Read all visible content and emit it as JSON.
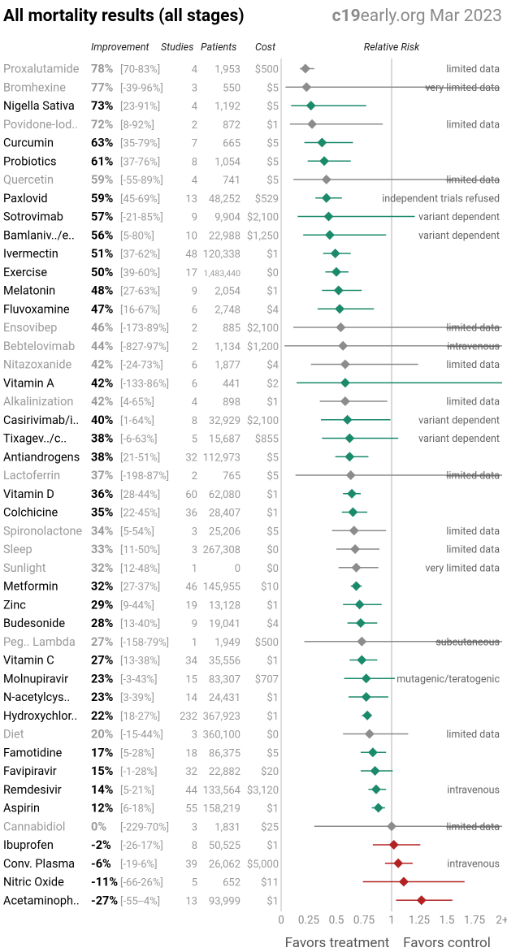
{
  "title": "All mortality results (all stages)",
  "brand_bold": "c19",
  "brand_rest": "early.org Mar 2023",
  "headers": {
    "improvement": "Improvement",
    "studies": "Studies",
    "patients": "Patients",
    "cost": "Cost",
    "relative_risk": "Relative Risk"
  },
  "footer": {
    "favors_treatment": "Favors treatment",
    "favors_control": "Favors control"
  },
  "colors": {
    "green": "#1b8a6b",
    "gray": "#8c8c8c",
    "red": "#b22222",
    "text_dark": "#000000",
    "text_muted": "#9a9a9a"
  },
  "chart_data": {
    "type": "forest",
    "x_axis": {
      "ticks": [
        0,
        0.25,
        0.5,
        0.75,
        1,
        1.25,
        1.5,
        1.75,
        2
      ],
      "tick_labels": [
        "0",
        "0.25",
        "0.5",
        "0.75",
        "1",
        "1.25",
        "1.5",
        "1.75",
        "2+"
      ],
      "range": [
        0,
        2
      ],
      "reference_line": 1
    },
    "rows": [
      {
        "name": "Proxalutamide",
        "improvement": "78%",
        "ci": "[70-83%]",
        "studies": "4",
        "patients": "1,953",
        "cost": "$500",
        "rr": 0.22,
        "lo": 0.17,
        "hi": 0.3,
        "color": "gray",
        "muted": true,
        "note": "limited data",
        "strike": false
      },
      {
        "name": "Bromhexine",
        "improvement": "77%",
        "ci": "[-39-96%]",
        "studies": "3",
        "patients": "550",
        "cost": "$5",
        "rr": 0.23,
        "lo": 0.04,
        "hi": 1.39,
        "color": "gray",
        "muted": true,
        "note": "very limited data",
        "strike": true
      },
      {
        "name": "Nigella Sativa",
        "improvement": "73%",
        "ci": "[23-91%]",
        "studies": "4",
        "patients": "1,192",
        "cost": "$5",
        "rr": 0.27,
        "lo": 0.09,
        "hi": 0.77,
        "color": "green",
        "muted": false,
        "note": "",
        "strike": false
      },
      {
        "name": "Povidone-Iod..",
        "improvement": "72%",
        "ci": "[8-92%]",
        "studies": "2",
        "patients": "872",
        "cost": "$1",
        "rr": 0.28,
        "lo": 0.08,
        "hi": 0.92,
        "color": "gray",
        "muted": true,
        "note": "limited data",
        "strike": false
      },
      {
        "name": "Curcumin",
        "improvement": "63%",
        "ci": "[35-79%]",
        "studies": "7",
        "patients": "665",
        "cost": "$5",
        "rr": 0.37,
        "lo": 0.21,
        "hi": 0.65,
        "color": "green",
        "muted": false,
        "note": "",
        "strike": false
      },
      {
        "name": "Probiotics",
        "improvement": "61%",
        "ci": "[37-76%]",
        "studies": "8",
        "patients": "1,054",
        "cost": "$5",
        "rr": 0.39,
        "lo": 0.24,
        "hi": 0.63,
        "color": "green",
        "muted": false,
        "note": "",
        "strike": false
      },
      {
        "name": "Quercetin",
        "improvement": "59%",
        "ci": "[-55-89%]",
        "studies": "4",
        "patients": "741",
        "cost": "$5",
        "rr": 0.41,
        "lo": 0.11,
        "hi": 1.55,
        "color": "gray",
        "muted": true,
        "note": "limited data",
        "strike": true
      },
      {
        "name": "Paxlovid",
        "improvement": "59%",
        "ci": "[45-69%]",
        "studies": "13",
        "patients": "48,252",
        "cost": "$529",
        "rr": 0.41,
        "lo": 0.31,
        "hi": 0.55,
        "color": "green",
        "muted": false,
        "note": "independent trials refused",
        "strike": false
      },
      {
        "name": "Sotrovimab",
        "improvement": "57%",
        "ci": "[-21-85%]",
        "studies": "9",
        "patients": "9,904",
        "cost": "$2,100",
        "rr": 0.43,
        "lo": 0.15,
        "hi": 1.21,
        "color": "green",
        "muted": false,
        "note": "variant dependent",
        "strike": false
      },
      {
        "name": "Bamlaniv../e..",
        "improvement": "56%",
        "ci": "[5-80%]",
        "studies": "10",
        "patients": "22,988",
        "cost": "$1,250",
        "rr": 0.44,
        "lo": 0.2,
        "hi": 0.95,
        "color": "green",
        "muted": false,
        "note": "variant dependent",
        "strike": false
      },
      {
        "name": "Ivermectin",
        "improvement": "51%",
        "ci": "[37-62%]",
        "studies": "48",
        "patients": "120,338",
        "cost": "$1",
        "rr": 0.49,
        "lo": 0.38,
        "hi": 0.63,
        "color": "green",
        "muted": false,
        "note": "",
        "strike": false
      },
      {
        "name": "Exercise",
        "improvement": "50%",
        "ci": "[39-60%]",
        "studies": "17",
        "patients": "1,483,440",
        "cost": "$0",
        "rr": 0.5,
        "lo": 0.4,
        "hi": 0.61,
        "color": "green",
        "muted": false,
        "note": "",
        "strike": false
      },
      {
        "name": "Melatonin",
        "improvement": "48%",
        "ci": "[27-63%]",
        "studies": "9",
        "patients": "2,054",
        "cost": "$1",
        "rr": 0.52,
        "lo": 0.37,
        "hi": 0.73,
        "color": "green",
        "muted": false,
        "note": "",
        "strike": false
      },
      {
        "name": "Fluvoxamine",
        "improvement": "47%",
        "ci": "[16-67%]",
        "studies": "6",
        "patients": "2,748",
        "cost": "$4",
        "rr": 0.53,
        "lo": 0.33,
        "hi": 0.84,
        "color": "green",
        "muted": false,
        "note": "",
        "strike": false
      },
      {
        "name": "Ensovibep",
        "improvement": "46%",
        "ci": "[-173-89%]",
        "studies": "2",
        "patients": "885",
        "cost": "$2,100",
        "rr": 0.54,
        "lo": 0.11,
        "hi": 2.73,
        "color": "gray",
        "muted": true,
        "note": "limited data",
        "strike": true
      },
      {
        "name": "Bebtelovimab",
        "improvement": "44%",
        "ci": "[-827-97%]",
        "studies": "2",
        "patients": "1,134",
        "cost": "$1,200",
        "rr": 0.56,
        "lo": 0.03,
        "hi": 9.27,
        "color": "gray",
        "muted": true,
        "note": "intravenous",
        "strike": true
      },
      {
        "name": "Nitazoxanide",
        "improvement": "42%",
        "ci": "[-24-73%]",
        "studies": "6",
        "patients": "1,877",
        "cost": "$4",
        "rr": 0.58,
        "lo": 0.27,
        "hi": 1.24,
        "color": "gray",
        "muted": true,
        "note": "limited data",
        "strike": false
      },
      {
        "name": "Vitamin A",
        "improvement": "42%",
        "ci": "[-133-86%]",
        "studies": "6",
        "patients": "441",
        "cost": "$2",
        "rr": 0.58,
        "lo": 0.14,
        "hi": 2.33,
        "color": "green",
        "muted": false,
        "note": "",
        "strike": false
      },
      {
        "name": "Alkalinization",
        "improvement": "42%",
        "ci": "[4-65%]",
        "studies": "4",
        "patients": "898",
        "cost": "$1",
        "rr": 0.58,
        "lo": 0.35,
        "hi": 0.96,
        "color": "gray",
        "muted": true,
        "note": "limited data",
        "strike": false
      },
      {
        "name": "Casirivimab/i..",
        "improvement": "40%",
        "ci": "[1-64%]",
        "studies": "8",
        "patients": "32,929",
        "cost": "$2,100",
        "rr": 0.6,
        "lo": 0.36,
        "hi": 0.99,
        "color": "green",
        "muted": false,
        "note": "variant dependent",
        "strike": false
      },
      {
        "name": "Tixagev../c..",
        "improvement": "38%",
        "ci": "[-6-63%]",
        "studies": "5",
        "patients": "15,687",
        "cost": "$855",
        "rr": 0.62,
        "lo": 0.37,
        "hi": 1.06,
        "color": "green",
        "muted": false,
        "note": "variant dependent",
        "strike": false
      },
      {
        "name": "Antiandrogens",
        "improvement": "38%",
        "ci": "[21-51%]",
        "studies": "32",
        "patients": "112,973",
        "cost": "$5",
        "rr": 0.62,
        "lo": 0.49,
        "hi": 0.79,
        "color": "green",
        "muted": false,
        "note": "",
        "strike": false
      },
      {
        "name": "Lactoferrin",
        "improvement": "37%",
        "ci": "[-198-87%]",
        "studies": "2",
        "patients": "765",
        "cost": "$5",
        "rr": 0.63,
        "lo": 0.13,
        "hi": 2.98,
        "color": "gray",
        "muted": true,
        "note": "limited data",
        "strike": true
      },
      {
        "name": "Vitamin D",
        "improvement": "36%",
        "ci": "[28-44%]",
        "studies": "60",
        "patients": "62,080",
        "cost": "$1",
        "rr": 0.64,
        "lo": 0.56,
        "hi": 0.72,
        "color": "green",
        "muted": false,
        "note": "",
        "strike": false
      },
      {
        "name": "Colchicine",
        "improvement": "35%",
        "ci": "[22-45%]",
        "studies": "36",
        "patients": "28,407",
        "cost": "$1",
        "rr": 0.65,
        "lo": 0.55,
        "hi": 0.78,
        "color": "green",
        "muted": false,
        "note": "",
        "strike": false
      },
      {
        "name": "Spironolactone",
        "improvement": "34%",
        "ci": "[5-54%]",
        "studies": "3",
        "patients": "25,206",
        "cost": "$5",
        "rr": 0.66,
        "lo": 0.46,
        "hi": 0.95,
        "color": "gray",
        "muted": true,
        "note": "limited data",
        "strike": false
      },
      {
        "name": "Sleep",
        "improvement": "33%",
        "ci": "[11-50%]",
        "studies": "3",
        "patients": "267,308",
        "cost": "$0",
        "rr": 0.67,
        "lo": 0.5,
        "hi": 0.89,
        "color": "gray",
        "muted": true,
        "note": "limited data",
        "strike": false
      },
      {
        "name": "Sunlight",
        "improvement": "32%",
        "ci": "[12-48%]",
        "studies": "1",
        "patients": "0",
        "cost": "$0",
        "rr": 0.68,
        "lo": 0.52,
        "hi": 0.88,
        "color": "gray",
        "muted": true,
        "note": "very limited data",
        "strike": false
      },
      {
        "name": "Metformin",
        "improvement": "32%",
        "ci": "[27-37%]",
        "studies": "46",
        "patients": "145,955",
        "cost": "$10",
        "rr": 0.68,
        "lo": 0.63,
        "hi": 0.73,
        "color": "green",
        "muted": false,
        "note": "",
        "strike": false
      },
      {
        "name": "Zinc",
        "improvement": "29%",
        "ci": "[9-44%]",
        "studies": "19",
        "patients": "13,128",
        "cost": "$1",
        "rr": 0.71,
        "lo": 0.56,
        "hi": 0.91,
        "color": "green",
        "muted": false,
        "note": "",
        "strike": false
      },
      {
        "name": "Budesonide",
        "improvement": "28%",
        "ci": "[13-40%]",
        "studies": "9",
        "patients": "19,041",
        "cost": "$4",
        "rr": 0.72,
        "lo": 0.6,
        "hi": 0.87,
        "color": "green",
        "muted": false,
        "note": "",
        "strike": false
      },
      {
        "name": "Peg.. Lambda",
        "improvement": "27%",
        "ci": "[-158-79%]",
        "studies": "1",
        "patients": "1,949",
        "cost": "$500",
        "rr": 0.73,
        "lo": 0.21,
        "hi": 2.58,
        "color": "gray",
        "muted": true,
        "note": "subcutaneous",
        "strike": true
      },
      {
        "name": "Vitamin C",
        "improvement": "27%",
        "ci": "[13-38%]",
        "studies": "34",
        "patients": "35,556",
        "cost": "$1",
        "rr": 0.73,
        "lo": 0.62,
        "hi": 0.87,
        "color": "green",
        "muted": false,
        "note": "",
        "strike": false
      },
      {
        "name": "Molnupiravir",
        "improvement": "23%",
        "ci": "[-3-43%]",
        "studies": "15",
        "patients": "83,307",
        "cost": "$707",
        "rr": 0.77,
        "lo": 0.57,
        "hi": 1.03,
        "color": "green",
        "muted": false,
        "note": "mutagenic/teratogenic",
        "strike": false
      },
      {
        "name": "N-acetylcys..",
        "improvement": "23%",
        "ci": "[3-39%]",
        "studies": "14",
        "patients": "24,431",
        "cost": "$1",
        "rr": 0.77,
        "lo": 0.61,
        "hi": 0.97,
        "color": "green",
        "muted": false,
        "note": "",
        "strike": false
      },
      {
        "name": "Hydroxychlor..",
        "improvement": "22%",
        "ci": "[18-27%]",
        "studies": "232",
        "patients": "367,923",
        "cost": "$1",
        "rr": 0.78,
        "lo": 0.73,
        "hi": 0.82,
        "color": "green",
        "muted": false,
        "note": "",
        "strike": false
      },
      {
        "name": "Diet",
        "improvement": "20%",
        "ci": "[-15-44%]",
        "studies": "3",
        "patients": "360,100",
        "cost": "$0",
        "rr": 0.8,
        "lo": 0.56,
        "hi": 1.15,
        "color": "gray",
        "muted": true,
        "note": "limited data",
        "strike": false
      },
      {
        "name": "Famotidine",
        "improvement": "17%",
        "ci": "[5-28%]",
        "studies": "18",
        "patients": "86,375",
        "cost": "$5",
        "rr": 0.83,
        "lo": 0.72,
        "hi": 0.95,
        "color": "green",
        "muted": false,
        "note": "",
        "strike": false
      },
      {
        "name": "Favipiravir",
        "improvement": "15%",
        "ci": "[-1-28%]",
        "studies": "32",
        "patients": "22,882",
        "cost": "$20",
        "rr": 0.85,
        "lo": 0.72,
        "hi": 1.01,
        "color": "green",
        "muted": false,
        "note": "",
        "strike": false
      },
      {
        "name": "Remdesivir",
        "improvement": "14%",
        "ci": "[5-21%]",
        "studies": "44",
        "patients": "133,564",
        "cost": "$3,120",
        "rr": 0.86,
        "lo": 0.79,
        "hi": 0.95,
        "color": "green",
        "muted": false,
        "note": "intravenous",
        "strike": false
      },
      {
        "name": "Aspirin",
        "improvement": "12%",
        "ci": "[6-18%]",
        "studies": "55",
        "patients": "158,219",
        "cost": "$1",
        "rr": 0.88,
        "lo": 0.82,
        "hi": 0.94,
        "color": "green",
        "muted": false,
        "note": "",
        "strike": false
      },
      {
        "name": "Cannabidiol",
        "improvement": "0%",
        "ci": "[-229-70%]",
        "studies": "3",
        "patients": "1,831",
        "cost": "$25",
        "rr": 1.0,
        "lo": 0.3,
        "hi": 3.29,
        "color": "gray",
        "muted": true,
        "note": "limited data",
        "strike": true
      },
      {
        "name": "Ibuprofen",
        "improvement": "-2%",
        "ci": "[-26-17%]",
        "studies": "8",
        "patients": "50,525",
        "cost": "$1",
        "rr": 1.02,
        "lo": 0.83,
        "hi": 1.26,
        "color": "red",
        "muted": false,
        "note": "",
        "strike": false
      },
      {
        "name": "Conv. Plasma",
        "improvement": "-6%",
        "ci": "[-19-6%]",
        "studies": "39",
        "patients": "26,062",
        "cost": "$5,000",
        "rr": 1.06,
        "lo": 0.94,
        "hi": 1.19,
        "color": "red",
        "muted": false,
        "note": "intravenous",
        "strike": false
      },
      {
        "name": "Nitric Oxide",
        "improvement": "-11%",
        "ci": "[-66-26%]",
        "studies": "5",
        "patients": "652",
        "cost": "$11",
        "rr": 1.11,
        "lo": 0.74,
        "hi": 1.66,
        "color": "red",
        "muted": false,
        "note": "",
        "strike": false
      },
      {
        "name": "Acetaminoph..",
        "improvement": "-27%",
        "ci": "[-55--4%]",
        "studies": "13",
        "patients": "93,999",
        "cost": "$1",
        "rr": 1.27,
        "lo": 1.04,
        "hi": 1.55,
        "color": "red",
        "muted": false,
        "note": "",
        "strike": false
      }
    ]
  }
}
